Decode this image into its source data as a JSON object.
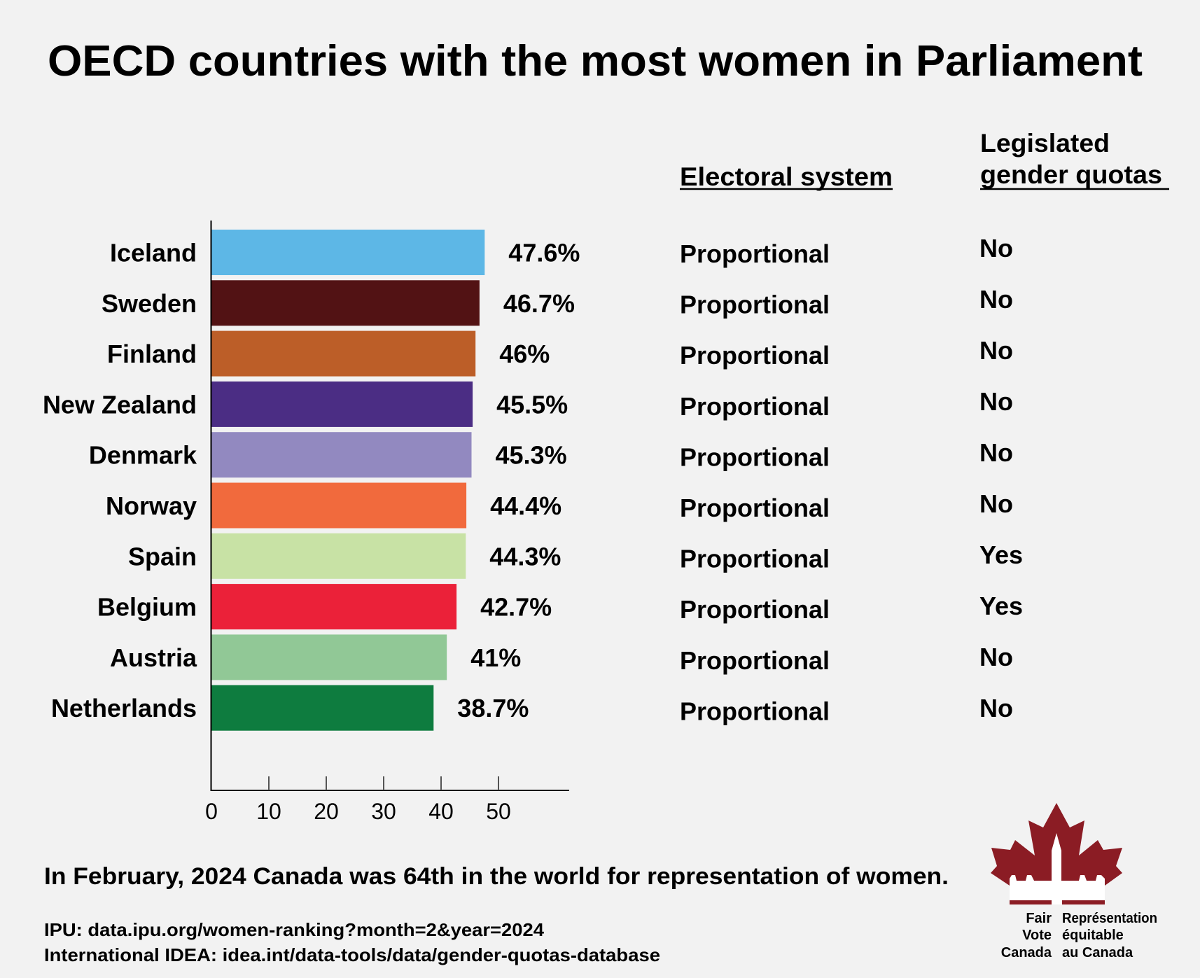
{
  "chart_data": {
    "type": "bar",
    "orientation": "horizontal",
    "title": "OECD countries with the most women in Parliament",
    "categories": [
      "Iceland",
      "Sweden",
      "Finland",
      "New Zealand",
      "Denmark",
      "Norway",
      "Spain",
      "Belgium",
      "Austria",
      "Netherlands"
    ],
    "values": [
      47.6,
      46.7,
      46,
      45.5,
      45.3,
      44.4,
      44.3,
      42.7,
      41,
      38.7
    ],
    "value_labels": [
      "47.6%",
      "46.7%",
      "46%",
      "45.5%",
      "45.3%",
      "44.4%",
      "44.3%",
      "42.7%",
      "41%",
      "38.7%"
    ],
    "colors": [
      "#5db7e6",
      "#521214",
      "#bc5e28",
      "#4b2d84",
      "#9289c0",
      "#f16a3d",
      "#c8e2a5",
      "#eb2139",
      "#91c896",
      "#0e7c3f"
    ],
    "xlabel": "",
    "ylabel": "",
    "xlim": [
      0,
      62
    ],
    "xticks": [
      0,
      10,
      20,
      30,
      40,
      50
    ],
    "xtick_labels": [
      "0",
      "10",
      "20",
      "30",
      "40",
      "50"
    ],
    "grid": false,
    "legend": "none"
  },
  "table": {
    "headers": {
      "electoral": "Electoral system",
      "quotas_line1": "Legislated",
      "quotas_line2": "gender quotas"
    },
    "electoral_system": [
      "Proportional",
      "Proportional",
      "Proportional",
      "Proportional",
      "Proportional",
      "Proportional",
      "Proportional",
      "Proportional",
      "Proportional",
      "Proportional"
    ],
    "gender_quotas": [
      "No",
      "No",
      "No",
      "No",
      "No",
      "No",
      "Yes",
      "Yes",
      "No",
      "No"
    ]
  },
  "footer": {
    "note": "In February, 2024 Canada was 64th in the world for representation of women.",
    "source1": "IPU: data.ipu.org/women-ranking?month=2&year=2024",
    "source2": "International IDEA: idea.int/data-tools/data/gender-quotas-database"
  },
  "logo": {
    "icon": "maple-leaf-parliament-icon",
    "color": "#8b1c24",
    "en_lines": [
      "Fair",
      "Vote",
      "Canada"
    ],
    "fr_lines": [
      "Représentation",
      "équitable",
      "au Canada"
    ]
  }
}
